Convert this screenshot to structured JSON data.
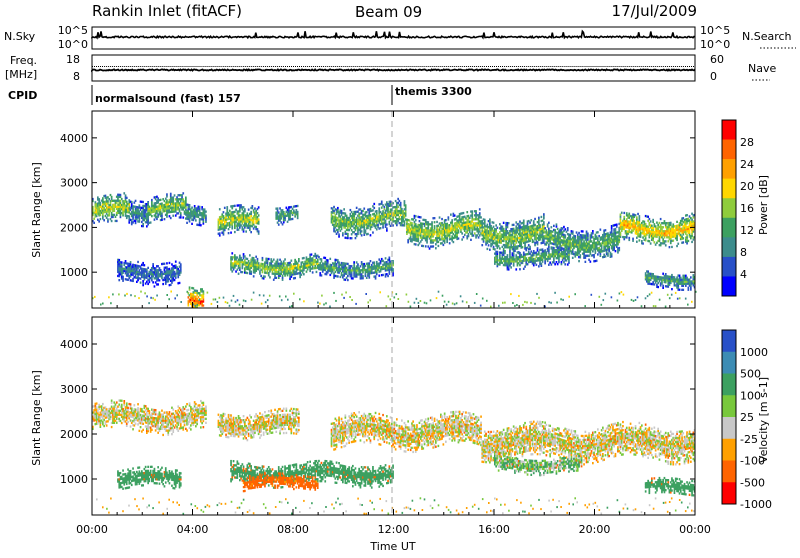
{
  "header": {
    "station": "Rankin Inlet (fitACF)",
    "beam": "Beam 09",
    "date": "17/Jul/2009"
  },
  "top_panels": {
    "nsky_label": "N.Sky",
    "nsky_ticks": [
      "10^5",
      "10^0"
    ],
    "nsearch_label": "N.Search",
    "nsearch_ticks": [
      "10^5",
      "10^0"
    ],
    "freq_label_line1": "Freq.",
    "freq_label_line2": "[MHz]",
    "freq_ticks": [
      "18",
      "8"
    ],
    "nave_label": "Nave",
    "nave_ticks": [
      "60",
      "0"
    ],
    "cpid_label": "CPID",
    "cpid_segments": [
      {
        "name": "normalsound (fast) 157",
        "start_hour": 0
      },
      {
        "name": "themis 3300",
        "start_hour": 12
      }
    ]
  },
  "chart_data": [
    {
      "type": "heatmap",
      "name": "power",
      "xlabel": "Time UT",
      "ylabel": "Slant Range [km]",
      "x_range_hours": [
        0,
        24
      ],
      "ylim": [
        200,
        4600
      ],
      "yticks": [
        1000,
        2000,
        3000,
        4000
      ],
      "colorbar_label": "Power [dB]",
      "colorbar_ticks": [
        "28",
        "24",
        "20",
        "16",
        "12",
        "8",
        "4"
      ],
      "colorbar_colors": [
        "#ff0000",
        "#ff6400",
        "#ffa000",
        "#ffd700",
        "#8fcc3c",
        "#3ca060",
        "#3c8c8c",
        "#2850c8",
        "#0000ff"
      ],
      "bands": [
        {
          "start": 0.0,
          "end": 1.5,
          "center": 2350,
          "width": 320,
          "level": 18
        },
        {
          "start": 1.5,
          "end": 2.2,
          "center": 2350,
          "width": 300,
          "level": 10
        },
        {
          "start": 2.2,
          "end": 3.7,
          "center": 2400,
          "width": 280,
          "level": 16
        },
        {
          "start": 3.7,
          "end": 4.5,
          "center": 2300,
          "width": 220,
          "level": 12
        },
        {
          "start": 5.0,
          "end": 6.6,
          "center": 2100,
          "width": 300,
          "level": 18
        },
        {
          "start": 7.3,
          "end": 8.2,
          "center": 2300,
          "width": 200,
          "level": 12
        },
        {
          "start": 9.5,
          "end": 12.5,
          "center": 2180,
          "width": 340,
          "level": 16
        },
        {
          "start": 12.5,
          "end": 15.5,
          "center": 1950,
          "width": 340,
          "level": 18
        },
        {
          "start": 15.5,
          "end": 18.0,
          "center": 1850,
          "width": 380,
          "level": 16
        },
        {
          "start": 18.0,
          "end": 21.0,
          "center": 1680,
          "width": 360,
          "level": 14
        },
        {
          "start": 21.0,
          "end": 24.0,
          "center": 1950,
          "width": 320,
          "level": 22
        },
        {
          "start": 5.5,
          "end": 9.0,
          "center": 1120,
          "width": 240,
          "level": 16
        },
        {
          "start": 9.0,
          "end": 12.0,
          "center": 1080,
          "width": 220,
          "level": 12
        },
        {
          "start": 1.0,
          "end": 3.5,
          "center": 1000,
          "width": 260,
          "level": 8
        },
        {
          "start": 16.0,
          "end": 19.0,
          "center": 1300,
          "width": 200,
          "level": 14
        },
        {
          "start": 22.0,
          "end": 24.0,
          "center": 820,
          "width": 180,
          "level": 12
        },
        {
          "start": 3.8,
          "end": 4.4,
          "center": 400,
          "width": 300,
          "level": 28
        }
      ]
    },
    {
      "type": "heatmap",
      "name": "velocity",
      "xlabel": "Time UT",
      "ylabel": "Slant Range [km]",
      "x_range_hours": [
        0,
        24
      ],
      "ylim": [
        200,
        4600
      ],
      "yticks": [
        1000,
        2000,
        3000,
        4000
      ],
      "xticks": [
        "00:00",
        "04:00",
        "08:00",
        "12:00",
        "16:00",
        "20:00",
        "00:00"
      ],
      "colorbar_label": "Velocity [m s-1]",
      "colorbar_ticks": [
        "1000",
        "500",
        "100",
        "25",
        "-25",
        "-100",
        "-500",
        "-1000"
      ],
      "colorbar_colors": [
        "#2850c8",
        "#3c8cb4",
        "#3ca060",
        "#78c83c",
        "#c8c8c8",
        "#ffa000",
        "#ff6400",
        "#ff0000"
      ],
      "bands": [
        {
          "start": 0.0,
          "end": 4.5,
          "center": 2350,
          "width": 300,
          "level": 0
        },
        {
          "start": 5.0,
          "end": 8.2,
          "center": 2200,
          "width": 280,
          "level": 0
        },
        {
          "start": 9.5,
          "end": 15.5,
          "center": 2050,
          "width": 360,
          "level": 0
        },
        {
          "start": 15.5,
          "end": 24.0,
          "center": 1800,
          "width": 380,
          "level": 0
        },
        {
          "start": 1.0,
          "end": 3.5,
          "center": 1000,
          "width": 220,
          "level": 200
        },
        {
          "start": 5.5,
          "end": 12.0,
          "center": 1100,
          "width": 240,
          "level": 150
        },
        {
          "start": 16.0,
          "end": 19.5,
          "center": 1300,
          "width": 180,
          "level": 60
        },
        {
          "start": 22.0,
          "end": 24.0,
          "center": 800,
          "width": 160,
          "level": 120
        },
        {
          "start": 6.0,
          "end": 9.0,
          "center": 900,
          "width": 160,
          "level": -150
        }
      ]
    }
  ]
}
